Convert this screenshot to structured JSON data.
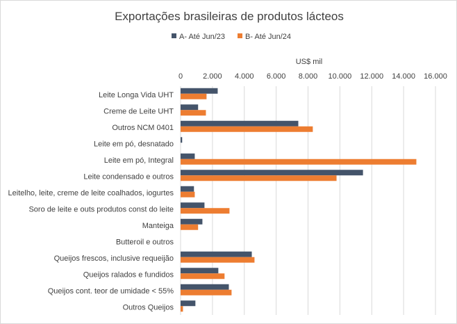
{
  "chart_data": {
    "type": "bar",
    "orientation": "horizontal",
    "title": "Exportações brasileiras de produtos lácteos",
    "xlabel": "US$ mil",
    "xlim": [
      0,
      16000
    ],
    "ticks": [
      0,
      2000,
      4000,
      6000,
      8000,
      10000,
      12000,
      14000,
      16000
    ],
    "tick_labels": [
      "0",
      "2.000",
      "4.000",
      "6.000",
      "8.000",
      "10.000",
      "12.000",
      "14.000",
      "16.000"
    ],
    "legend_position": "top",
    "grid": true,
    "categories": [
      "Leite Longa Vida UHT",
      "Creme de Leite UHT",
      "Outros NCM 0401",
      "Leite em pó, desnatado",
      "Leite em pó, Integral",
      "Leite condensado e outros",
      "Leitelho, leite, creme de leite coalhados, iogurtes",
      "Soro de leite e outs produtos const do leite",
      "Manteiga",
      "Butteroil e outros",
      "Queijos frescos, inclusive requeijão",
      "Queijos ralados e fundidos",
      "Queijos cont. teor de umidade < 55%",
      "Outros Queijos"
    ],
    "series": [
      {
        "name": "A- Até Jun/23",
        "color": "#44546A",
        "values": [
          2330,
          1100,
          7390,
          100,
          890,
          11450,
          840,
          1500,
          1370,
          0,
          4470,
          2370,
          3030,
          930
        ]
      },
      {
        "name": "B- Até Jun/24",
        "color": "#ED7D31",
        "values": [
          1630,
          1590,
          8300,
          0,
          14800,
          9790,
          890,
          3070,
          1100,
          0,
          4640,
          2760,
          3200,
          150
        ]
      }
    ]
  }
}
